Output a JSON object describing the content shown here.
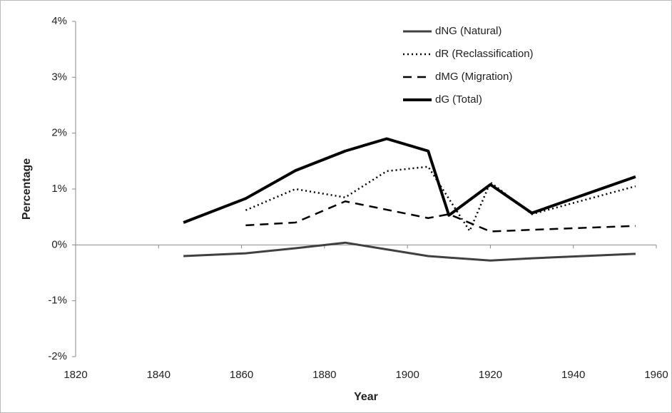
{
  "chart_data": {
    "type": "line",
    "xlabel": "Year",
    "ylabel": "Percentage",
    "xlim": [
      1820,
      1960
    ],
    "xticks": [
      1820,
      1840,
      1860,
      1880,
      1900,
      1920,
      1940,
      1960
    ],
    "ylim": [
      -2,
      4
    ],
    "yticks": [
      {
        "value": -2,
        "label": "-2%"
      },
      {
        "value": -1,
        "label": "-1%"
      },
      {
        "value": 0,
        "label": "0%"
      },
      {
        "value": 1,
        "label": "1%"
      },
      {
        "value": 2,
        "label": "2%"
      },
      {
        "value": 3,
        "label": "3%"
      },
      {
        "value": 4,
        "label": "4%"
      }
    ],
    "grid": false,
    "legend": "top",
    "series": [
      {
        "name": "dNG (Natural)",
        "color": "#404040",
        "dash": "solid",
        "width": 3,
        "x": [
          1846,
          1861,
          1873,
          1885,
          1895,
          1905,
          1920,
          1930,
          1955
        ],
        "values": [
          -0.2,
          -0.15,
          -0.06,
          0.04,
          -0.08,
          -0.2,
          -0.28,
          -0.24,
          -0.16
        ]
      },
      {
        "name": "dR (Reclassification)",
        "color": "#000000",
        "dash": "dotted",
        "width": 2.5,
        "x": [
          1861,
          1873,
          1885,
          1895,
          1905,
          1915,
          1920,
          1930,
          1955
        ],
        "values": [
          0.62,
          1.0,
          0.85,
          1.32,
          1.4,
          0.25,
          1.12,
          0.55,
          1.05
        ]
      },
      {
        "name": "dMG (Migration)",
        "color": "#000000",
        "dash": "dashed",
        "width": 2.5,
        "x": [
          1861,
          1873,
          1885,
          1895,
          1905,
          1910,
          1920,
          1930,
          1955
        ],
        "values": [
          0.35,
          0.4,
          0.78,
          0.63,
          0.48,
          0.55,
          0.24,
          0.27,
          0.34
        ]
      },
      {
        "name": "dG (Total)",
        "color": "#000000",
        "dash": "solid",
        "width": 4,
        "x": [
          1846,
          1861,
          1873,
          1885,
          1895,
          1905,
          1910,
          1920,
          1930,
          1955
        ],
        "values": [
          0.4,
          0.83,
          1.33,
          1.68,
          1.9,
          1.68,
          0.53,
          1.08,
          0.57,
          1.22
        ]
      }
    ]
  }
}
